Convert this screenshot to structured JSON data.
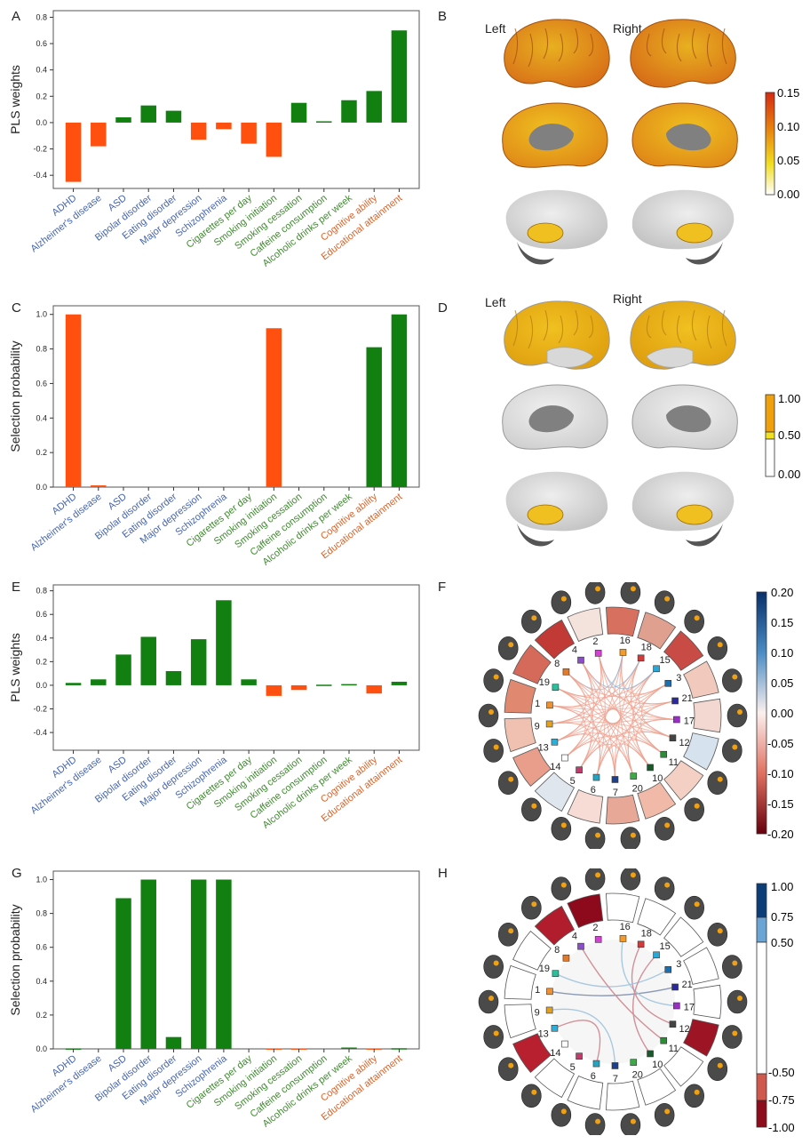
{
  "panel_letters": {
    "a": "A",
    "b": "B",
    "c": "C",
    "d": "D",
    "e": "E",
    "f": "F",
    "g": "G",
    "h": "H"
  },
  "brain_labels": {
    "b_left": "Left",
    "b_right": "Right",
    "d_left": "Left",
    "d_right": "Right"
  },
  "colors": {
    "orange": "#FF5010",
    "green": "#118011",
    "blue_label": "#4565B0",
    "green_label": "#3E8A2E",
    "orange_label": "#D8632A"
  },
  "category_groups": [
    "blue",
    "blue",
    "blue",
    "blue",
    "blue",
    "blue",
    "blue",
    "green",
    "green",
    "green",
    "green",
    "green",
    "orange",
    "orange"
  ],
  "colorbars": {
    "b": {
      "ticks": [
        "0.15",
        "0.10",
        "0.05",
        "0.00"
      ]
    },
    "d": {
      "ticks": [
        "1.00",
        "0.50",
        "0.00"
      ]
    },
    "f": {
      "ticks": [
        "0.20",
        "0.15",
        "0.10",
        "0.05",
        "0.00",
        "-0.05",
        "-0.10",
        "-0.15",
        "-0.20"
      ]
    },
    "h": {
      "ticks": [
        "1.00",
        "0.75",
        "0.50",
        "-0.50",
        "-0.75",
        "-1.00"
      ]
    }
  },
  "chord_nodes": [
    "16",
    "18",
    "15",
    "3",
    "21",
    "17",
    "12",
    "11",
    "10",
    "20",
    "7",
    "6",
    "5",
    "14",
    "13",
    "9",
    "1",
    "19",
    "8",
    "4",
    "2"
  ],
  "chart_data": [
    {
      "panel": "A",
      "type": "bar",
      "ylabel": "PLS weights",
      "ylim": [
        -0.5,
        0.85
      ],
      "yticks": [
        "0.8",
        "0.6",
        "0.4",
        "0.2",
        "0.0",
        "-0.2",
        "-0.4"
      ],
      "categories": [
        "ADHD",
        "Alzheimer's disease",
        "ASD",
        "Bipolar disorder",
        "Eating disorder",
        "Major depression",
        "Schizophrenia",
        "Cigarettes per day",
        "Smoking initiation",
        "Smoking cessation",
        "Caffeine consumption",
        "Alcoholic drinks per week",
        "Cognitive ability",
        "Educational attainment"
      ],
      "values": [
        -0.45,
        -0.18,
        0.04,
        0.13,
        0.09,
        -0.13,
        -0.05,
        -0.16,
        -0.26,
        0.15,
        0.01,
        0.17,
        0.24,
        0.7
      ]
    },
    {
      "panel": "C",
      "type": "bar",
      "ylabel": "Selection probability",
      "ylim": [
        0,
        1.05
      ],
      "yticks": [
        "1.0",
        "0.8",
        "0.6",
        "0.4",
        "0.2",
        "0.0"
      ],
      "categories": [
        "ADHD",
        "Alzheimer's disease",
        "ASD",
        "Bipolar disorder",
        "Eating disorder",
        "Major depression",
        "Schizophrenia",
        "Cigarettes per day",
        "Smoking initiation",
        "Smoking cessation",
        "Caffeine consumption",
        "Alcoholic drinks per week",
        "Cognitive ability",
        "Educational attainment"
      ],
      "values": [
        1.0,
        0.01,
        0,
        0,
        0,
        0,
        0,
        0,
        0.92,
        0,
        0,
        0,
        0.81,
        1.0
      ],
      "bar_colors": [
        "orange",
        "orange",
        "orange",
        "orange",
        "orange",
        "orange",
        "orange",
        "orange",
        "orange",
        "green",
        "green",
        "green",
        "green",
        "green"
      ]
    },
    {
      "panel": "E",
      "type": "bar",
      "ylabel": "PLS weights",
      "ylim": [
        -0.55,
        0.85
      ],
      "yticks": [
        "0.8",
        "0.6",
        "0.4",
        "0.2",
        "0.0",
        "-0.2",
        "-0.4"
      ],
      "categories": [
        "ADHD",
        "Alzheimer's disease",
        "ASD",
        "Bipolar disorder",
        "Eating disorder",
        "Major depression",
        "Schizophrenia",
        "Cigarettes per day",
        "Smoking initiation",
        "Smoking cessation",
        "Caffeine consumption",
        "Alcoholic drinks per week",
        "Cognitive ability",
        "Educational attainment"
      ],
      "values": [
        0.02,
        0.05,
        0.26,
        0.41,
        0.12,
        0.39,
        0.72,
        0.05,
        -0.09,
        -0.04,
        0.005,
        0.01,
        -0.07,
        0.03
      ]
    },
    {
      "panel": "G",
      "type": "bar",
      "ylabel": "Selection probability",
      "ylim": [
        0,
        1.05
      ],
      "yticks": [
        "1.0",
        "0.8",
        "0.6",
        "0.4",
        "0.2",
        "0.0"
      ],
      "categories": [
        "ADHD",
        "Alzheimer's disease",
        "ASD",
        "Bipolar disorder",
        "Eating disorder",
        "Major depression",
        "Schizophrenia",
        "Cigarettes per day",
        "Smoking initiation",
        "Smoking cessation",
        "Caffeine consumption",
        "Alcoholic drinks per week",
        "Cognitive ability",
        "Educational attainment"
      ],
      "values": [
        0.003,
        0,
        0.89,
        1.0,
        0.07,
        1.0,
        1.0,
        0,
        0.003,
        0.003,
        0,
        0.008,
        0.003,
        0.004
      ],
      "bar_colors": [
        "green",
        "green",
        "green",
        "green",
        "green",
        "green",
        "green",
        "orange",
        "orange",
        "orange",
        "orange",
        "green",
        "orange",
        "green"
      ]
    }
  ]
}
